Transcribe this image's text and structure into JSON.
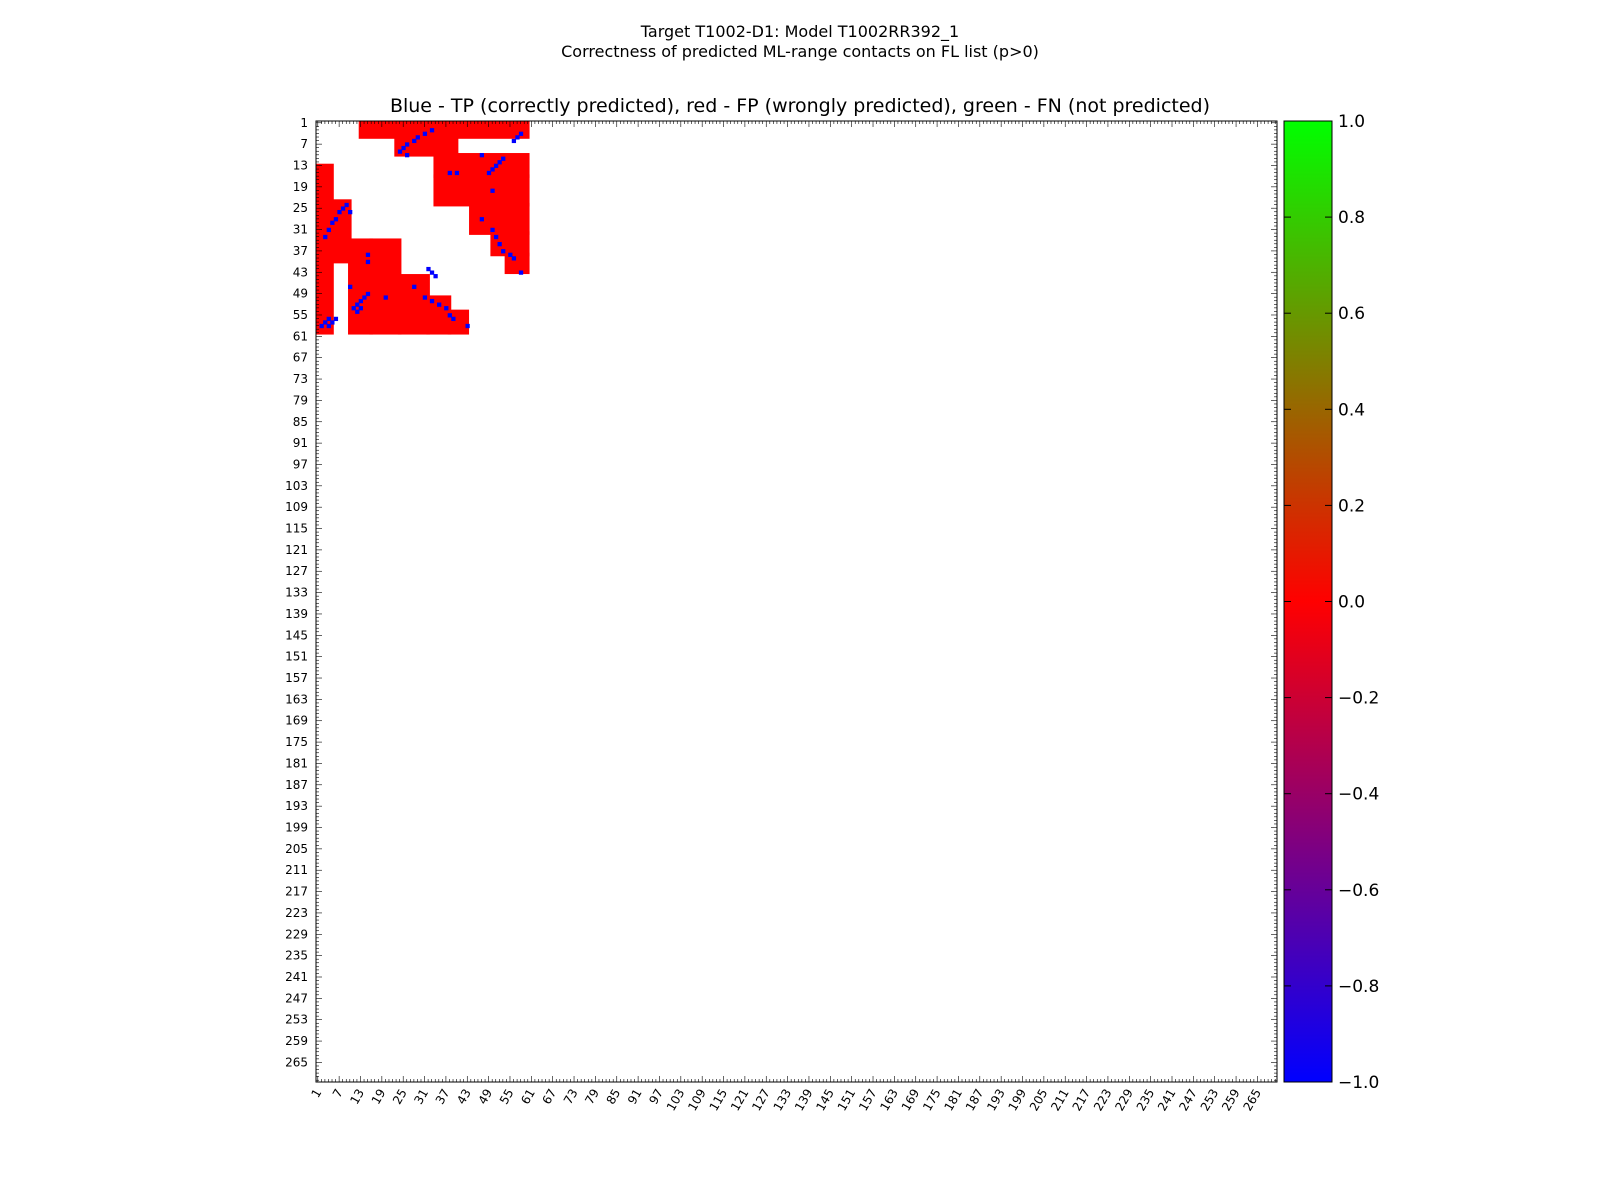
{
  "chart_data": {
    "type": "heatmap",
    "title_lines": [
      "Target T1002-D1: Model T1002RR392_1",
      "Correctness of predicted ML-range contacts on FL list (p>0)"
    ],
    "subtitle": "Blue - TP (correctly predicted), red - FP (wrongly predicted), green - FN (not predicted)",
    "axis_range": [
      1,
      270
    ],
    "tick_labels": [
      "1",
      "7",
      "13",
      "19",
      "25",
      "31",
      "37",
      "43",
      "49",
      "55",
      "61",
      "67",
      "73",
      "79",
      "85",
      "91",
      "97",
      "103",
      "109",
      "115",
      "121",
      "127",
      "133",
      "139",
      "145",
      "151",
      "157",
      "163",
      "169",
      "175",
      "181",
      "187",
      "193",
      "199",
      "205",
      "211",
      "217",
      "223",
      "229",
      "235",
      "241",
      "247",
      "253",
      "259",
      "265"
    ],
    "colorbar": {
      "range": [
        -1.0,
        1.0
      ],
      "tick_labels": [
        "1.0",
        "0.8",
        "0.6",
        "0.4",
        "0.2",
        "0.0",
        "−0.2",
        "−0.4",
        "−0.6",
        "−0.8",
        "−1.0"
      ],
      "colors": [
        "#0000ff",
        "#ff0000",
        "#00ff00"
      ]
    },
    "fp_blocks": [
      [
        13,
        1,
        60,
        5
      ],
      [
        23,
        5,
        40,
        10
      ],
      [
        34,
        10,
        60,
        16
      ],
      [
        34,
        16,
        60,
        24
      ],
      [
        44,
        24,
        60,
        32
      ],
      [
        50,
        32,
        60,
        38
      ],
      [
        54,
        38,
        60,
        43
      ],
      [
        1,
        13,
        5,
        60
      ],
      [
        5,
        23,
        10,
        40
      ],
      [
        10,
        34,
        16,
        60
      ],
      [
        16,
        34,
        24,
        60
      ],
      [
        24,
        44,
        32,
        60
      ],
      [
        32,
        50,
        38,
        60
      ],
      [
        38,
        54,
        43,
        60
      ]
    ],
    "tp_points": [
      [
        33,
        3
      ],
      [
        31,
        4
      ],
      [
        29,
        5
      ],
      [
        28,
        6
      ],
      [
        26,
        7
      ],
      [
        25,
        8
      ],
      [
        24,
        9
      ],
      [
        26,
        10
      ],
      [
        47,
        10
      ],
      [
        53,
        11
      ],
      [
        52,
        12
      ],
      [
        51,
        13
      ],
      [
        50,
        14
      ],
      [
        49,
        15
      ],
      [
        56,
        6
      ],
      [
        57,
        5
      ],
      [
        58,
        4
      ],
      [
        38,
        15
      ],
      [
        40,
        15
      ],
      [
        50,
        20
      ],
      [
        47,
        28
      ],
      [
        50,
        31
      ],
      [
        51,
        33
      ],
      [
        52,
        35
      ],
      [
        53,
        37
      ],
      [
        55,
        38
      ],
      [
        56,
        39
      ],
      [
        58,
        43
      ],
      [
        3,
        33
      ],
      [
        4,
        31
      ],
      [
        5,
        29
      ],
      [
        6,
        28
      ],
      [
        7,
        26
      ],
      [
        8,
        25
      ],
      [
        9,
        24
      ],
      [
        10,
        26
      ],
      [
        10,
        47
      ],
      [
        11,
        53
      ],
      [
        12,
        52
      ],
      [
        13,
        51
      ],
      [
        14,
        50
      ],
      [
        15,
        49
      ],
      [
        6,
        56
      ],
      [
        5,
        57
      ],
      [
        4,
        58
      ],
      [
        15,
        38
      ],
      [
        15,
        40
      ],
      [
        20,
        50
      ],
      [
        28,
        47
      ],
      [
        31,
        50
      ],
      [
        33,
        51
      ],
      [
        35,
        52
      ],
      [
        37,
        53
      ],
      [
        38,
        55
      ],
      [
        39,
        56
      ],
      [
        43,
        58
      ],
      [
        56,
        4
      ],
      [
        57,
        3
      ],
      [
        58,
        2
      ],
      [
        54,
        12
      ],
      [
        53,
        13
      ],
      [
        44,
        34
      ],
      [
        43,
        33
      ],
      [
        42,
        32
      ]
    ]
  }
}
